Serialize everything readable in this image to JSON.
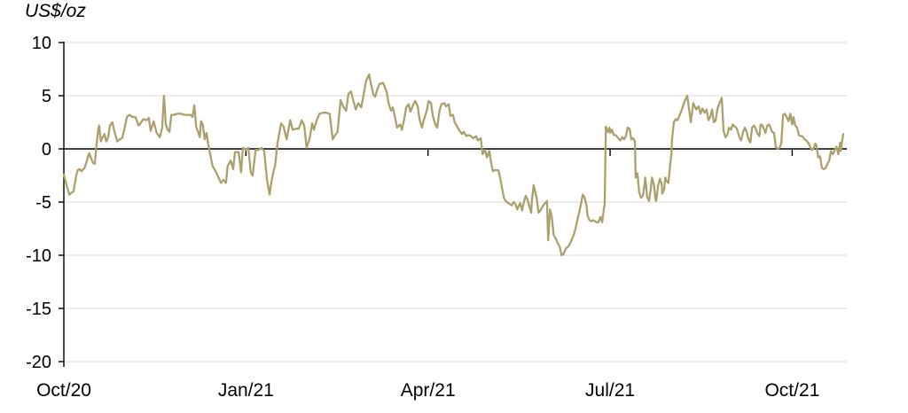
{
  "title": "US$/oz",
  "chart_data": {
    "type": "line",
    "title": "US$/oz",
    "x_axis": {
      "unit": "months_since_Oct_2020",
      "range": [
        0,
        12.9
      ],
      "tick_positions": [
        0,
        3,
        6,
        9,
        12
      ],
      "tick_labels": [
        "Oct/20",
        "Jan/21",
        "Apr/21",
        "Jul/21",
        "Oct/21"
      ]
    },
    "y_axis": {
      "label": "US$/oz",
      "range": [
        -20,
        10
      ],
      "ticks": [
        10,
        5,
        0,
        -5,
        -10,
        -15,
        -20
      ]
    },
    "grid": "horizontal",
    "zero_line": true,
    "legend": "none",
    "line_color": "#ACA06C",
    "gridline_color": "#D9D9D9",
    "axis_color": "#000000",
    "points": [
      [
        0.0,
        -2.4
      ],
      [
        0.04,
        -3.3
      ],
      [
        0.09,
        -4.3
      ],
      [
        0.13,
        -4.1
      ],
      [
        0.16,
        -4.0
      ],
      [
        0.2,
        -2.6
      ],
      [
        0.23,
        -2.0
      ],
      [
        0.26,
        -1.9
      ],
      [
        0.29,
        -2.1
      ],
      [
        0.34,
        -1.8
      ],
      [
        0.37,
        -1.3
      ],
      [
        0.39,
        -0.9
      ],
      [
        0.42,
        -0.4
      ],
      [
        0.45,
        -0.9
      ],
      [
        0.48,
        -1.3
      ],
      [
        0.51,
        -1.4
      ],
      [
        0.54,
        0.5
      ],
      [
        0.57,
        1.9
      ],
      [
        0.58,
        2.2
      ],
      [
        0.61,
        0.7
      ],
      [
        0.64,
        1.1
      ],
      [
        0.67,
        1.4
      ],
      [
        0.7,
        0.7
      ],
      [
        0.73,
        1.1
      ],
      [
        0.76,
        2.2
      ],
      [
        0.8,
        2.5
      ],
      [
        0.83,
        1.7
      ],
      [
        0.88,
        0.7
      ],
      [
        0.92,
        0.9
      ],
      [
        0.96,
        1.0
      ],
      [
        0.99,
        1.7
      ],
      [
        1.04,
        3.0
      ],
      [
        1.08,
        3.2
      ],
      [
        1.13,
        3.0
      ],
      [
        1.18,
        3.0
      ],
      [
        1.23,
        2.2
      ],
      [
        1.26,
        2.4
      ],
      [
        1.31,
        2.8
      ],
      [
        1.36,
        2.7
      ],
      [
        1.4,
        2.9
      ],
      [
        1.43,
        1.7
      ],
      [
        1.48,
        2.6
      ],
      [
        1.53,
        1.5
      ],
      [
        1.58,
        1.1
      ],
      [
        1.62,
        2.0
      ],
      [
        1.65,
        5.0
      ],
      [
        1.68,
        2.3
      ],
      [
        1.71,
        1.8
      ],
      [
        1.74,
        1.6
      ],
      [
        1.77,
        3.2
      ],
      [
        1.81,
        3.2
      ],
      [
        1.87,
        3.3
      ],
      [
        1.93,
        3.3
      ],
      [
        1.99,
        3.2
      ],
      [
        2.05,
        3.2
      ],
      [
        2.09,
        3.2
      ],
      [
        2.12,
        3.0
      ],
      [
        2.15,
        4.1
      ],
      [
        2.18,
        2.1
      ],
      [
        2.21,
        1.6
      ],
      [
        2.24,
        1.1
      ],
      [
        2.26,
        2.6
      ],
      [
        2.29,
        2.3
      ],
      [
        2.32,
        0.9
      ],
      [
        2.35,
        1.5
      ],
      [
        2.38,
        0.4
      ],
      [
        2.41,
        -0.5
      ],
      [
        2.45,
        -1.6
      ],
      [
        2.5,
        -2.1
      ],
      [
        2.54,
        -2.6
      ],
      [
        2.59,
        -3.2
      ],
      [
        2.63,
        -2.9
      ],
      [
        2.67,
        -3.2
      ],
      [
        2.7,
        -1.6
      ],
      [
        2.75,
        -1.1
      ],
      [
        2.79,
        -1.9
      ],
      [
        2.82,
        -0.3
      ],
      [
        2.88,
        -0.3
      ],
      [
        2.92,
        -2.2
      ],
      [
        2.95,
        0.1
      ],
      [
        3.0,
        -0.1
      ],
      [
        3.04,
        0.1
      ],
      [
        3.08,
        -2.2
      ],
      [
        3.11,
        -2.5
      ],
      [
        3.16,
        -0.1
      ],
      [
        3.21,
        -0.1
      ],
      [
        3.26,
        0.1
      ],
      [
        3.3,
        -0.2
      ],
      [
        3.35,
        -3.0
      ],
      [
        3.39,
        -4.3
      ],
      [
        3.42,
        -3.1
      ],
      [
        3.45,
        -2.2
      ],
      [
        3.48,
        -1.6
      ],
      [
        3.52,
        0.5
      ],
      [
        3.58,
        2.4
      ],
      [
        3.62,
        2.1
      ],
      [
        3.67,
        0.9
      ],
      [
        3.73,
        2.7
      ],
      [
        3.77,
        1.8
      ],
      [
        3.83,
        1.9
      ],
      [
        3.87,
        1.9
      ],
      [
        3.92,
        2.7
      ],
      [
        3.96,
        2.2
      ],
      [
        4.0,
        0.1
      ],
      [
        4.05,
        1.0
      ],
      [
        4.09,
        2.4
      ],
      [
        4.12,
        1.8
      ],
      [
        4.16,
        2.6
      ],
      [
        4.21,
        3.3
      ],
      [
        4.27,
        3.4
      ],
      [
        4.33,
        3.4
      ],
      [
        4.38,
        3.3
      ],
      [
        4.43,
        0.9
      ],
      [
        4.47,
        1.3
      ],
      [
        4.51,
        1.6
      ],
      [
        4.56,
        4.6
      ],
      [
        4.6,
        4.0
      ],
      [
        4.65,
        3.6
      ],
      [
        4.69,
        5.2
      ],
      [
        4.73,
        5.4
      ],
      [
        4.78,
        4.3
      ],
      [
        4.81,
        3.7
      ],
      [
        4.85,
        4.3
      ],
      [
        4.9,
        3.9
      ],
      [
        4.94,
        5.1
      ],
      [
        4.98,
        6.4
      ],
      [
        5.03,
        7.0
      ],
      [
        5.06,
        6.1
      ],
      [
        5.1,
        5.1
      ],
      [
        5.13,
        4.9
      ],
      [
        5.17,
        5.7
      ],
      [
        5.2,
        6.1
      ],
      [
        5.26,
        6.2
      ],
      [
        5.29,
        5.8
      ],
      [
        5.32,
        5.3
      ],
      [
        5.35,
        4.3
      ],
      [
        5.39,
        3.6
      ],
      [
        5.42,
        3.9
      ],
      [
        5.46,
        2.9
      ],
      [
        5.49,
        2.0
      ],
      [
        5.54,
        2.3
      ],
      [
        5.57,
        1.8
      ],
      [
        5.61,
        2.9
      ],
      [
        5.64,
        3.9
      ],
      [
        5.68,
        4.2
      ],
      [
        5.71,
        3.5
      ],
      [
        5.76,
        4.2
      ],
      [
        5.79,
        4.5
      ],
      [
        5.83,
        4.0
      ],
      [
        5.86,
        2.8
      ],
      [
        5.9,
        2.0
      ],
      [
        5.93,
        2.7
      ],
      [
        5.98,
        3.6
      ],
      [
        6.01,
        4.5
      ],
      [
        6.05,
        4.3
      ],
      [
        6.08,
        3.1
      ],
      [
        6.12,
        2.3
      ],
      [
        6.15,
        2.0
      ],
      [
        6.19,
        3.6
      ],
      [
        6.22,
        4.2
      ],
      [
        6.27,
        4.3
      ],
      [
        6.3,
        4.0
      ],
      [
        6.34,
        4.2
      ],
      [
        6.37,
        3.1
      ],
      [
        6.41,
        3.2
      ],
      [
        6.44,
        2.5
      ],
      [
        6.49,
        2.0
      ],
      [
        6.52,
        1.7
      ],
      [
        6.56,
        1.4
      ],
      [
        6.59,
        1.6
      ],
      [
        6.63,
        1.2
      ],
      [
        6.66,
        1.3
      ],
      [
        6.71,
        1.2
      ],
      [
        6.74,
        1.0
      ],
      [
        6.79,
        1.2
      ],
      [
        6.82,
        0.8
      ],
      [
        6.87,
        1.0
      ],
      [
        6.9,
        -0.5
      ],
      [
        6.94,
        -0.1
      ],
      [
        6.97,
        -0.8
      ],
      [
        7.01,
        -0.2
      ],
      [
        7.04,
        -1.3
      ],
      [
        7.07,
        -2.1
      ],
      [
        7.1,
        -2.0
      ],
      [
        7.13,
        -2.0
      ],
      [
        7.16,
        -2.0
      ],
      [
        7.19,
        -2.8
      ],
      [
        7.22,
        -3.7
      ],
      [
        7.25,
        -4.6
      ],
      [
        7.28,
        -4.9
      ],
      [
        7.32,
        -5.1
      ],
      [
        7.35,
        -5.2
      ],
      [
        7.38,
        -5.3
      ],
      [
        7.41,
        -5.0
      ],
      [
        7.44,
        -5.2
      ],
      [
        7.47,
        -5.7
      ],
      [
        7.5,
        -5.3
      ],
      [
        7.52,
        -5.1
      ],
      [
        7.55,
        -5.8
      ],
      [
        7.58,
        -5.0
      ],
      [
        7.61,
        -4.4
      ],
      [
        7.64,
        -4.8
      ],
      [
        7.67,
        -5.4
      ],
      [
        7.7,
        -6.0
      ],
      [
        7.71,
        -5.0
      ],
      [
        7.74,
        -3.4
      ],
      [
        7.79,
        -4.6
      ],
      [
        7.82,
        -6.0
      ],
      [
        7.85,
        -5.8
      ],
      [
        7.88,
        -5.5
      ],
      [
        7.9,
        -5.3
      ],
      [
        7.93,
        -5.1
      ],
      [
        7.96,
        -4.9
      ],
      [
        7.98,
        -8.6
      ],
      [
        8.01,
        -5.7
      ],
      [
        8.04,
        -6.4
      ],
      [
        8.07,
        -8.1
      ],
      [
        8.11,
        -8.5
      ],
      [
        8.14,
        -8.9
      ],
      [
        8.17,
        -9.2
      ],
      [
        8.2,
        -10.0
      ],
      [
        8.23,
        -9.9
      ],
      [
        8.26,
        -9.5
      ],
      [
        8.28,
        -9.3
      ],
      [
        8.31,
        -9.2
      ],
      [
        8.34,
        -8.9
      ],
      [
        8.37,
        -8.5
      ],
      [
        8.4,
        -8.1
      ],
      [
        8.43,
        -7.5
      ],
      [
        8.46,
        -6.7
      ],
      [
        8.49,
        -6.0
      ],
      [
        8.52,
        -5.2
      ],
      [
        8.55,
        -4.3
      ],
      [
        8.58,
        -4.6
      ],
      [
        8.61,
        -5.3
      ],
      [
        8.63,
        -6.3
      ],
      [
        8.66,
        -6.7
      ],
      [
        8.69,
        -6.8
      ],
      [
        8.72,
        -6.7
      ],
      [
        8.75,
        -6.8
      ],
      [
        8.78,
        -6.9
      ],
      [
        8.81,
        -6.9
      ],
      [
        8.84,
        -6.4
      ],
      [
        8.87,
        -6.9
      ],
      [
        8.9,
        -5.5
      ],
      [
        8.91,
        -5.3
      ],
      [
        8.93,
        2.1
      ],
      [
        8.96,
        1.6
      ],
      [
        8.99,
        2.0
      ],
      [
        9.0,
        1.5
      ],
      [
        9.03,
        1.8
      ],
      [
        9.06,
        1.3
      ],
      [
        9.09,
        1.3
      ],
      [
        9.12,
        1.1
      ],
      [
        9.15,
        0.9
      ],
      [
        9.17,
        0.8
      ],
      [
        9.2,
        1.1
      ],
      [
        9.23,
        0.9
      ],
      [
        9.26,
        1.2
      ],
      [
        9.29,
        2.0
      ],
      [
        9.32,
        1.9
      ],
      [
        9.35,
        0.9
      ],
      [
        9.38,
        1.0
      ],
      [
        9.41,
        0.7
      ],
      [
        9.42,
        -2.7
      ],
      [
        9.45,
        -2.3
      ],
      [
        9.48,
        -4.1
      ],
      [
        9.51,
        -4.6
      ],
      [
        9.54,
        -4.4
      ],
      [
        9.57,
        -3.2
      ],
      [
        9.58,
        -2.7
      ],
      [
        9.61,
        -4.5
      ],
      [
        9.64,
        -4.9
      ],
      [
        9.67,
        -3.8
      ],
      [
        9.69,
        -2.7
      ],
      [
        9.72,
        -3.3
      ],
      [
        9.75,
        -4.8
      ],
      [
        9.76,
        -4.9
      ],
      [
        9.79,
        -3.5
      ],
      [
        9.82,
        -2.8
      ],
      [
        9.85,
        -3.3
      ],
      [
        9.86,
        -4.2
      ],
      [
        9.89,
        -3.8
      ],
      [
        9.91,
        -2.7
      ],
      [
        9.93,
        -3.0
      ],
      [
        9.96,
        -3.2
      ],
      [
        9.99,
        -1.5
      ],
      [
        10.01,
        -0.5
      ],
      [
        10.02,
        0.9
      ],
      [
        10.05,
        2.5
      ],
      [
        10.08,
        2.8
      ],
      [
        10.11,
        2.7
      ],
      [
        10.14,
        3.1
      ],
      [
        10.17,
        3.5
      ],
      [
        10.2,
        4.0
      ],
      [
        10.23,
        4.5
      ],
      [
        10.27,
        5.0
      ],
      [
        10.3,
        3.8
      ],
      [
        10.33,
        2.5
      ],
      [
        10.37,
        4.3
      ],
      [
        10.42,
        3.7
      ],
      [
        10.46,
        4.0
      ],
      [
        10.49,
        3.3
      ],
      [
        10.52,
        3.8
      ],
      [
        10.56,
        3.4
      ],
      [
        10.59,
        3.7
      ],
      [
        10.62,
        2.7
      ],
      [
        10.65,
        3.0
      ],
      [
        10.68,
        3.7
      ],
      [
        10.71,
        2.5
      ],
      [
        10.74,
        2.7
      ],
      [
        10.77,
        3.8
      ],
      [
        10.81,
        4.4
      ],
      [
        10.84,
        4.8
      ],
      [
        10.87,
        1.7
      ],
      [
        10.9,
        1.1
      ],
      [
        10.93,
        1.3
      ],
      [
        10.96,
        2.0
      ],
      [
        10.99,
        1.8
      ],
      [
        11.02,
        2.3
      ],
      [
        11.05,
        2.1
      ],
      [
        11.08,
        2.0
      ],
      [
        11.1,
        1.7
      ],
      [
        11.13,
        1.1
      ],
      [
        11.16,
        0.8
      ],
      [
        11.19,
        1.6
      ],
      [
        11.22,
        2.0
      ],
      [
        11.25,
        1.6
      ],
      [
        11.28,
        0.9
      ],
      [
        11.31,
        0.6
      ],
      [
        11.34,
        2.0
      ],
      [
        11.37,
        2.2
      ],
      [
        11.4,
        1.9
      ],
      [
        11.43,
        1.4
      ],
      [
        11.46,
        1.2
      ],
      [
        11.48,
        2.3
      ],
      [
        11.51,
        2.2
      ],
      [
        11.56,
        1.5
      ],
      [
        11.59,
        2.2
      ],
      [
        11.62,
        2.3
      ],
      [
        11.64,
        2.0
      ],
      [
        11.67,
        1.6
      ],
      [
        11.7,
        1.5
      ],
      [
        11.73,
        0.2
      ],
      [
        11.76,
        0.0
      ],
      [
        11.79,
        0.1
      ],
      [
        11.82,
        0.5
      ],
      [
        11.85,
        3.2
      ],
      [
        11.88,
        3.3
      ],
      [
        11.91,
        3.0
      ],
      [
        11.94,
        2.6
      ],
      [
        11.97,
        3.3
      ],
      [
        12.0,
        2.3
      ],
      [
        12.02,
        3.0
      ],
      [
        12.05,
        2.2
      ],
      [
        12.08,
        2.0
      ],
      [
        12.11,
        1.3
      ],
      [
        12.14,
        1.2
      ],
      [
        12.17,
        1.2
      ],
      [
        12.2,
        0.9
      ],
      [
        12.23,
        0.8
      ],
      [
        12.26,
        0.6
      ],
      [
        12.29,
        0.3
      ],
      [
        12.32,
        -0.1
      ],
      [
        12.35,
        0.0
      ],
      [
        12.38,
        0.5
      ],
      [
        12.4,
        0.3
      ],
      [
        12.43,
        -0.8
      ],
      [
        12.46,
        -0.7
      ],
      [
        12.49,
        -1.8
      ],
      [
        12.52,
        -1.9
      ],
      [
        12.55,
        -1.8
      ],
      [
        12.58,
        -1.4
      ],
      [
        12.61,
        -1.1
      ],
      [
        12.64,
        -0.2
      ],
      [
        12.67,
        -0.5
      ],
      [
        12.7,
        -0.1
      ],
      [
        12.73,
        0.2
      ],
      [
        12.76,
        -0.5
      ],
      [
        12.79,
        0.6
      ],
      [
        12.8,
        -0.2
      ],
      [
        12.84,
        1.4
      ]
    ]
  }
}
